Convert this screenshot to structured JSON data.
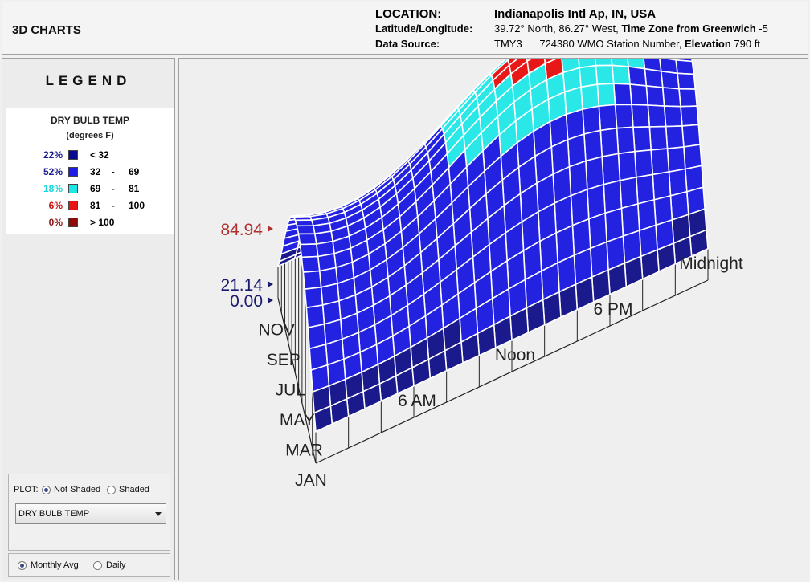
{
  "header": {
    "title": "3D CHARTS",
    "location_label": "LOCATION:",
    "location_value": "Indianapolis Intl Ap, IN, USA",
    "latlon_label": "Latitude/Longitude:",
    "latlon_value": "39.72° North, 86.27° West, ",
    "tz_label": "Time Zone from Greenwich",
    "tz_value": " -5",
    "source_label": "Data Source:",
    "source_value": "TMY3      724380 WMO Station Number, ",
    "elev_label": "Elevation",
    "elev_value": " 790 ft"
  },
  "legend": {
    "title": "LEGEND",
    "variable": "DRY BULB TEMP",
    "unit": "(degrees F)",
    "rows": [
      {
        "pct": "22%",
        "pct_color": "#1a1a8c",
        "swatch": "#0a0a90",
        "lo": "< 32",
        "sep": "",
        "hi": ""
      },
      {
        "pct": "52%",
        "pct_color": "#1a1a8c",
        "swatch": "#1c1ce6",
        "lo": "32",
        "sep": "-",
        "hi": "69"
      },
      {
        "pct": "18%",
        "pct_color": "#1ad6d6",
        "swatch": "#1ee6e6",
        "lo": "69",
        "sep": "-",
        "hi": "81"
      },
      {
        "pct": "6%",
        "pct_color": "#c81414",
        "swatch": "#e61414",
        "lo": "81",
        "sep": "-",
        "hi": "100"
      },
      {
        "pct": "0%",
        "pct_color": "#8c1414",
        "swatch": "#8c0a0a",
        "lo": "> 100",
        "sep": "",
        "hi": ""
      }
    ]
  },
  "controls": {
    "plot_label": "PLOT:",
    "not_shaded": "Not Shaded",
    "shaded": "Shaded",
    "variable_select": "DRY BULB TEMP",
    "monthly": "Monthly Avg",
    "daily": "Daily"
  },
  "chart_data": {
    "type": "surface3d",
    "variable": "DRY BULB TEMP",
    "z_markers": {
      "max": "84.94",
      "mid": "21.14",
      "base": "0.00"
    },
    "z_values": {
      "max": 84.94,
      "min": 21.14,
      "base": 0.0
    },
    "month_labels": [
      "JAN",
      "MAR",
      "MAY",
      "JUL",
      "SEP",
      "NOV"
    ],
    "hour_labels": [
      "6 AM",
      "Noon",
      "6 PM",
      "Midnight"
    ],
    "color_bands": [
      {
        "range": "< 32",
        "color": "#1a1a8c"
      },
      {
        "range": "32 - 69",
        "color": "#2222e0"
      },
      {
        "range": "69 - 81",
        "color": "#2ae8e8"
      },
      {
        "range": "81 - 100",
        "color": "#e81818"
      },
      {
        "range": "> 100",
        "color": "#8c0a0a"
      }
    ]
  }
}
